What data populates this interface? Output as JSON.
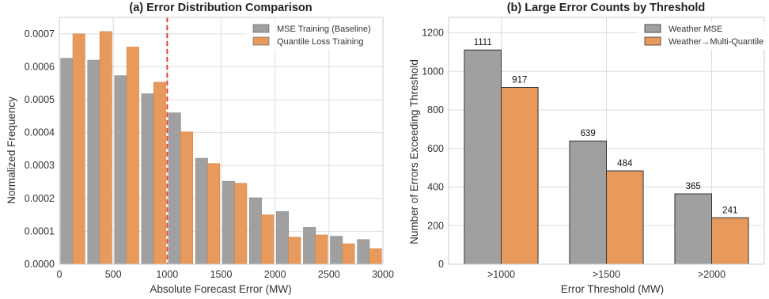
{
  "colors": {
    "gray": "#a0a0a0",
    "orange": "#e89a5d",
    "threshold_line": "#e8413c"
  },
  "chart_data": [
    {
      "type": "bar",
      "title": "(a) Error Distribution Comparison",
      "xlabel": "Absolute Forecast Error (MW)",
      "ylabel": "Normalized Frequency",
      "xlim": [
        0,
        3000
      ],
      "ylim": [
        0,
        0.00075
      ],
      "bin_width": 250,
      "bin_starts": [
        0,
        250,
        500,
        750,
        1000,
        1250,
        1500,
        1750,
        2000,
        2250,
        2500,
        2750
      ],
      "xticks": [
        0,
        500,
        1000,
        1500,
        2000,
        2500,
        3000
      ],
      "xtick_labels": [
        "0",
        "500",
        "1000",
        "1500",
        "2000",
        "2500",
        "3000"
      ],
      "yticks": [
        0,
        0.0001,
        0.0002,
        0.0003,
        0.0004,
        0.0005,
        0.0006,
        0.0007
      ],
      "ytick_labels": [
        "0.0000",
        "0.0001",
        "0.0002",
        "0.0003",
        "0.0004",
        "0.0005",
        "0.0006",
        "0.0007"
      ],
      "vline_x": 1000,
      "grid": true,
      "legend_position": "top-right",
      "series": [
        {
          "name": "MSE Training (Baseline)",
          "color": "#a0a0a0",
          "values": [
            0.000626,
            0.00062,
            0.000573,
            0.000518,
            0.00046,
            0.000322,
            0.000252,
            0.000202,
            0.00016,
            0.000112,
            8.5e-05,
            7.5e-05
          ]
        },
        {
          "name": "Quantile Loss Training",
          "color": "#e89a5d",
          "values": [
            0.0007,
            0.000707,
            0.00066,
            0.000553,
            0.000402,
            0.000306,
            0.000246,
            0.00015,
            8.2e-05,
            8.9e-05,
            6.2e-05,
            4.7e-05
          ]
        }
      ]
    },
    {
      "type": "bar",
      "title": "(b) Large Error Counts by Threshold",
      "xlabel": "Error Threshold (MW)",
      "ylabel": "Number of Errors Exceeding Threshold",
      "categories": [
        ">1000",
        ">1500",
        ">2000"
      ],
      "ylim": [
        0,
        1280
      ],
      "yticks": [
        0,
        200,
        400,
        600,
        800,
        1000,
        1200
      ],
      "ytick_labels": [
        "0",
        "200",
        "400",
        "600",
        "800",
        "1000",
        "1200"
      ],
      "grid": true,
      "legend_position": "top-right",
      "series": [
        {
          "name": "Weather MSE",
          "color": "#a0a0a0",
          "values": [
            1111,
            639,
            365
          ],
          "labels": [
            "1111",
            "639",
            "365"
          ]
        },
        {
          "name": "Weather→Multi-Quantile",
          "color": "#e89a5d",
          "values": [
            917,
            484,
            241
          ],
          "labels": [
            "917",
            "484",
            "241"
          ]
        }
      ]
    }
  ]
}
